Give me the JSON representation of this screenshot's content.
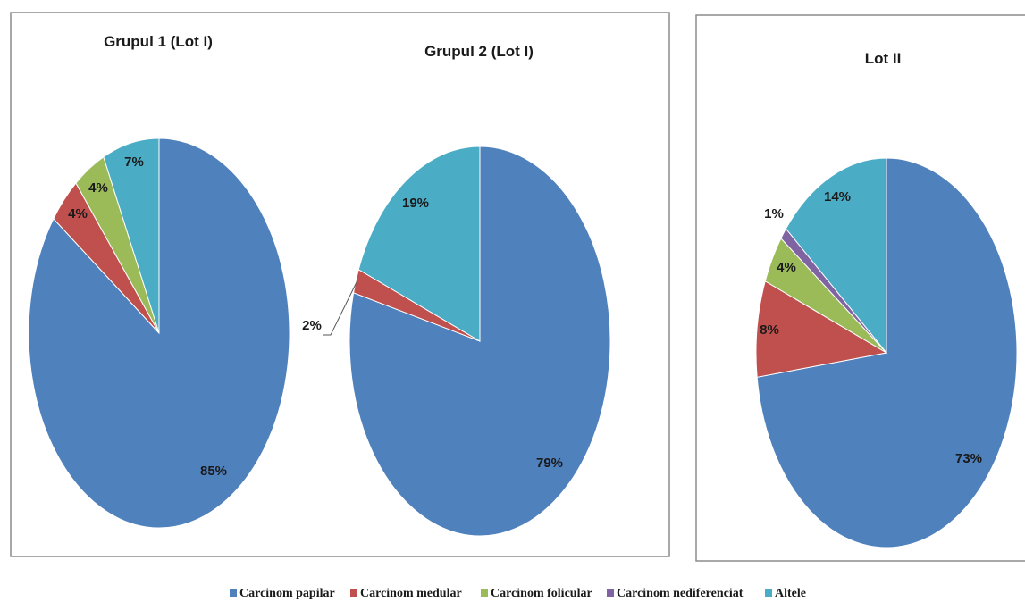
{
  "legend": [
    {
      "label": "Carcinom papilar",
      "color": "#4f81bd"
    },
    {
      "label": "Carcinom medular",
      "color": "#c0504d"
    },
    {
      "label": "Carcinom folicular",
      "color": "#9bbb59"
    },
    {
      "label": "Carcinom nediferenciat",
      "color": "#8064a2"
    },
    {
      "label": "Altele",
      "color": "#4bacc6"
    }
  ],
  "chart_data": [
    {
      "type": "pie",
      "title": "Grupul 1 (Lot I)",
      "categories": [
        "Carcinom papilar",
        "Carcinom medular",
        "Carcinom folicular",
        "Carcinom nediferenciat",
        "Altele"
      ],
      "values": [
        85,
        4,
        4,
        0,
        7
      ],
      "labels": [
        "85%",
        "4%",
        "4%",
        "",
        "7%"
      ]
    },
    {
      "type": "pie",
      "title": "Grupul 2 (Lot I)",
      "categories": [
        "Carcinom papilar",
        "Carcinom medular",
        "Carcinom folicular",
        "Carcinom nediferenciat",
        "Altele"
      ],
      "values": [
        79,
        2,
        0,
        0,
        19
      ],
      "labels": [
        "79%",
        "2%",
        "",
        "",
        "19%"
      ]
    },
    {
      "type": "pie",
      "title": "Lot II",
      "categories": [
        "Carcinom papilar",
        "Carcinom medular",
        "Carcinom folicular",
        "Carcinom nediferenciat",
        "Altele"
      ],
      "values": [
        73,
        8,
        4,
        1,
        14
      ],
      "labels": [
        "73%",
        "8%",
        "4%",
        "1%",
        "14%"
      ]
    }
  ]
}
